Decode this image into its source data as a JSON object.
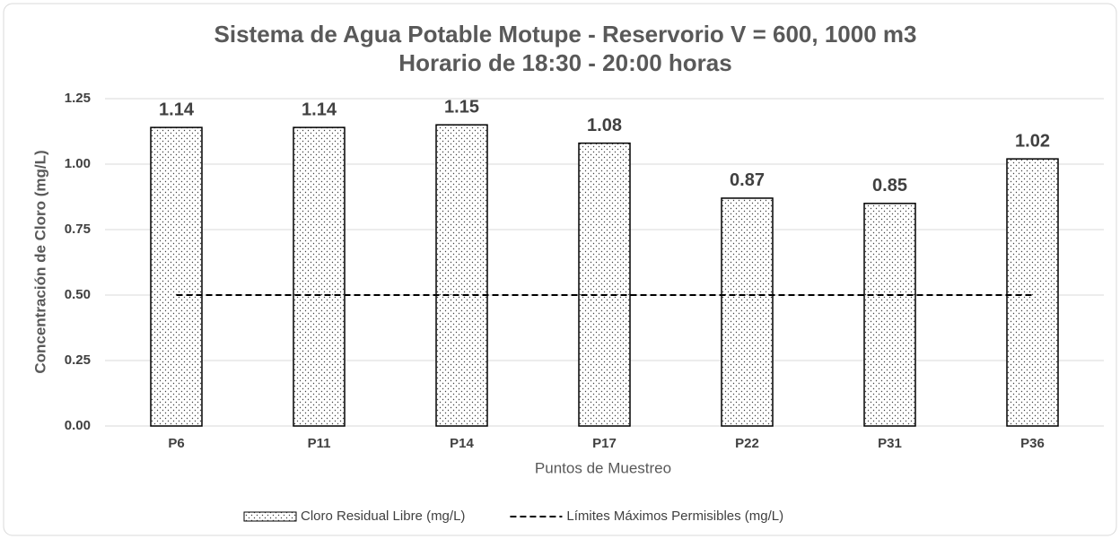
{
  "chart_data": {
    "type": "bar",
    "title": "Sistema de Agua Potable Motupe - Reservorio V = 600, 1000 m3",
    "subtitle": "Horario de 18:30 - 20:00 horas",
    "x_label": "Puntos de Muestreo",
    "y_label": "Concentración de Cloro (mg/L)",
    "categories": [
      "P6",
      "P11",
      "P14",
      "P17",
      "P22",
      "P31",
      "P36"
    ],
    "series": [
      {
        "name": "Cloro Residual Libre (mg/L)",
        "color": "#ffffff",
        "values": [
          1.14,
          1.14,
          1.15,
          1.08,
          0.87,
          0.85,
          1.02
        ]
      },
      {
        "name": "Límites Máximos Permisibles (mg/L)",
        "type": "line",
        "color": "#000000",
        "values": [
          0.5,
          0.5,
          0.5,
          0.5,
          0.5,
          0.5,
          0.5
        ]
      }
    ],
    "ylim": [
      0,
      1.25
    ],
    "yticks": [
      {
        "value": 0,
        "label": "0.00"
      },
      0.25,
      {
        "value": 0.5,
        "label": "0.50"
      },
      0.75,
      {
        "value": 1,
        "label": "1.00"
      },
      1.25
    ],
    "grid": true,
    "legend": "bottom"
  }
}
